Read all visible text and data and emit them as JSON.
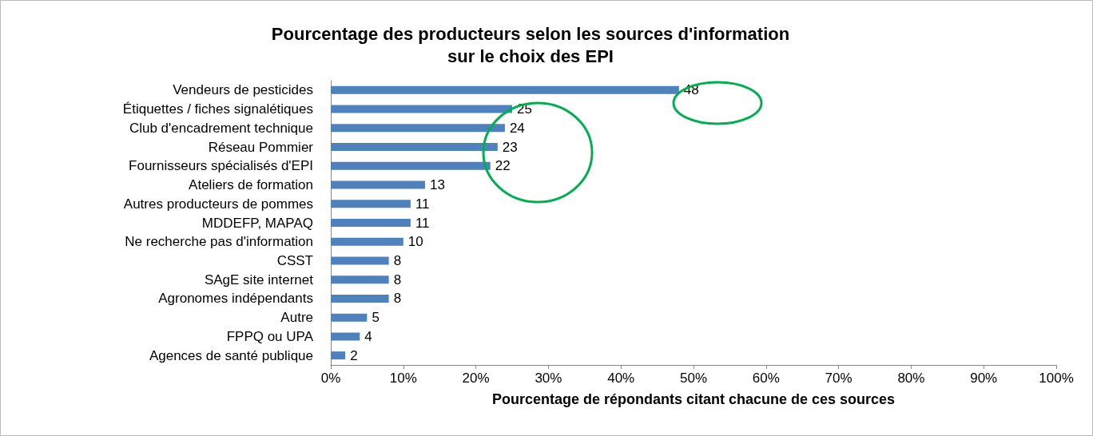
{
  "chart_data": {
    "type": "bar",
    "orientation": "horizontal",
    "title": "Pourcentage des producteurs selon les sources d'information\nsur le choix des EPI",
    "xlabel": "Pourcentage de répondants citant chacune de ces sources",
    "categories": [
      "Vendeurs de pesticides",
      "Étiquettes / fiches signalétiques",
      "Club d'encadrement technique",
      "Réseau Pommier",
      "Fournisseurs spécialisés d'EPI",
      "Ateliers de formation",
      "Autres producteurs de pommes",
      "MDDEFP, MAPAQ",
      "Ne recherche pas d'information",
      "CSST",
      "SAgE site internet",
      "Agronomes indépendants",
      "Autre",
      "FPPQ ou UPA",
      "Agences de santé publique"
    ],
    "values": [
      48,
      25,
      24,
      23,
      22,
      13,
      11,
      11,
      10,
      8,
      8,
      8,
      5,
      4,
      2
    ],
    "color": "#4f81bd",
    "data_labels": true,
    "grid": false,
    "xlim": [
      0,
      100
    ],
    "xticks": [
      {
        "value": 0,
        "label": "0%"
      },
      {
        "value": 10,
        "label": "10%"
      },
      {
        "value": 20,
        "label": "20%"
      },
      {
        "value": 30,
        "label": "30%"
      },
      {
        "value": 40,
        "label": "40%"
      },
      {
        "value": 50,
        "label": "50%"
      },
      {
        "value": 60,
        "label": "60%"
      },
      {
        "value": 70,
        "label": "70%"
      },
      {
        "value": 80,
        "label": "80%"
      },
      {
        "value": 90,
        "label": "90%"
      },
      {
        "value": 100,
        "label": "100%"
      }
    ]
  }
}
